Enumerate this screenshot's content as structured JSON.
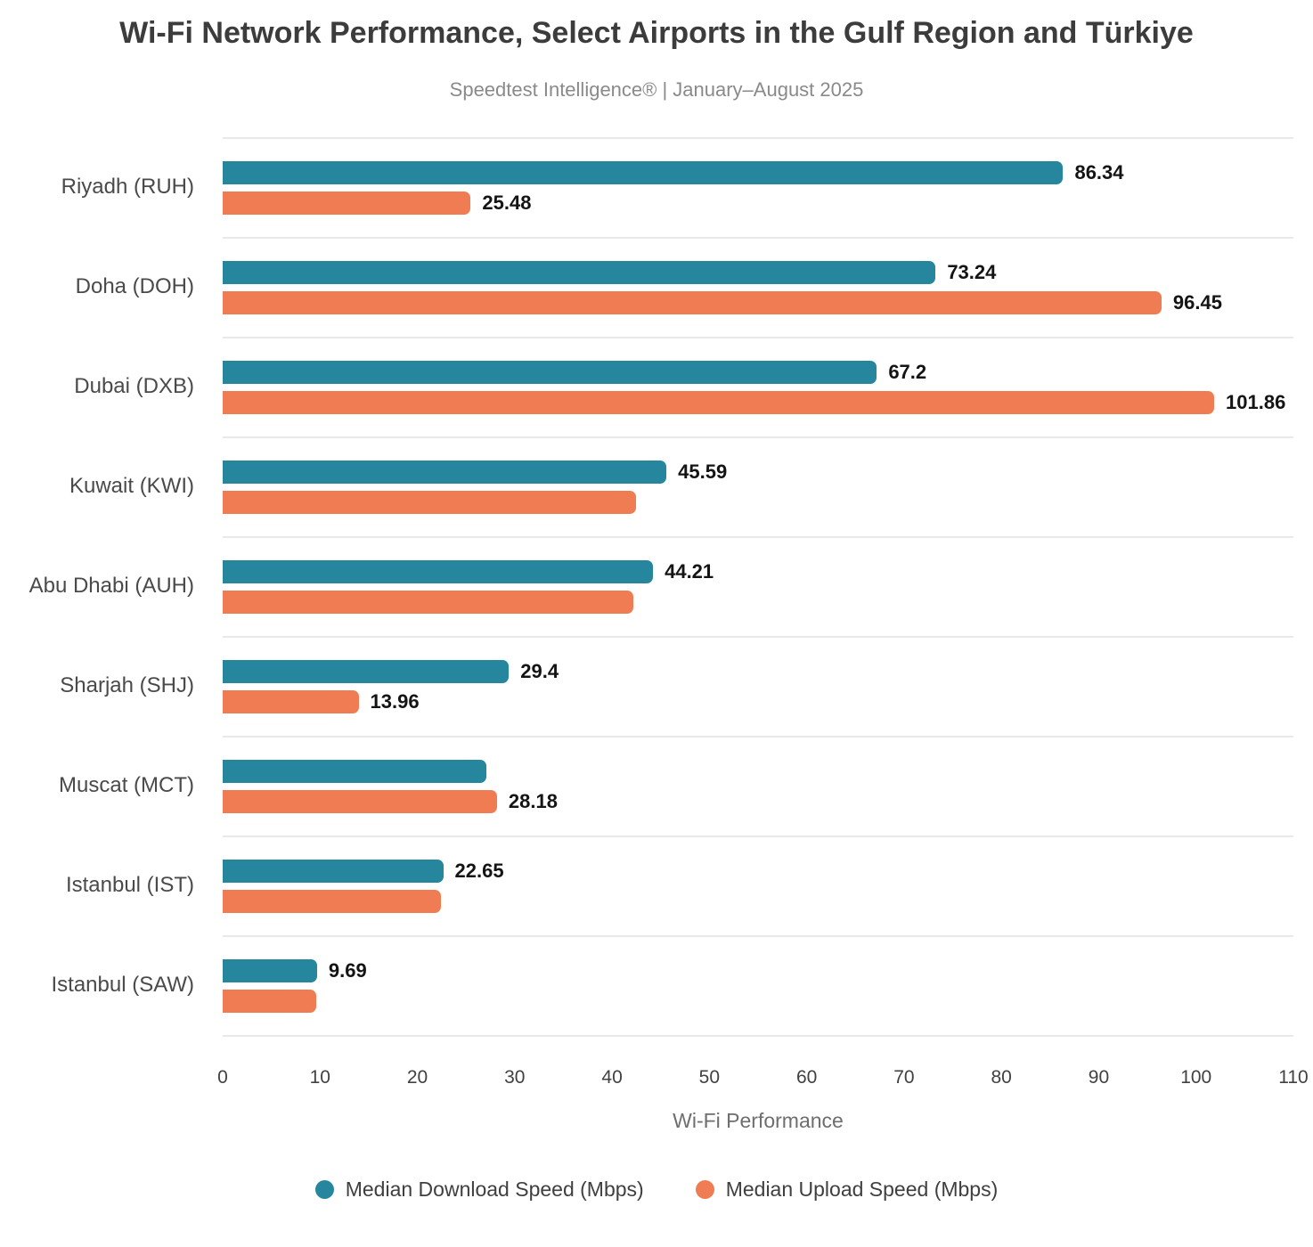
{
  "title": "Wi-Fi Network Performance, Select Airports in the Gulf Region and Türkiye",
  "subtitle": "Speedtest Intelligence® | January–August 2025",
  "legend": {
    "download": "Median Download Speed (Mbps)",
    "upload": "Median Upload Speed (Mbps)"
  },
  "chart_data": {
    "type": "bar",
    "orientation": "horizontal",
    "title": "Wi-Fi Network Performance, Select Airports in the Gulf Region and Türkiye",
    "subtitle": "Speedtest Intelligence® | January–August 2025",
    "xlabel": "Wi-Fi Performance",
    "xlim": [
      0,
      110
    ],
    "xticks": [
      0,
      10,
      20,
      30,
      40,
      50,
      60,
      70,
      80,
      90,
      100,
      110
    ],
    "grid": "row-separators-only",
    "legend_position": "bottom-center",
    "categories": [
      "Riyadh (RUH)",
      "Doha (DOH)",
      "Dubai (DXB)",
      "Kuwait (KWI)",
      "Abu Dhabi (AUH)",
      "Sharjah (SHJ)",
      "Muscat (MCT)",
      "Istanbul (IST)",
      "Istanbul (SAW)"
    ],
    "series": [
      {
        "name": "Median Download Speed (Mbps)",
        "color": "#26869E",
        "values": [
          86.34,
          73.24,
          67.2,
          45.59,
          44.21,
          29.4,
          27.1,
          22.65,
          9.69
        ],
        "labels": [
          "86.34",
          "73.24",
          "67.2",
          "45.59",
          "44.21",
          "29.4",
          "",
          "22.65",
          "9.69"
        ]
      },
      {
        "name": "Median Upload Speed (Mbps)",
        "color": "#F07C54",
        "values": [
          25.48,
          96.45,
          101.86,
          42.5,
          42.2,
          13.96,
          28.18,
          22.4,
          9.6
        ],
        "labels": [
          "25.48",
          "96.45",
          "101.86",
          "",
          "",
          "13.96",
          "28.18",
          "",
          ""
        ]
      }
    ]
  }
}
